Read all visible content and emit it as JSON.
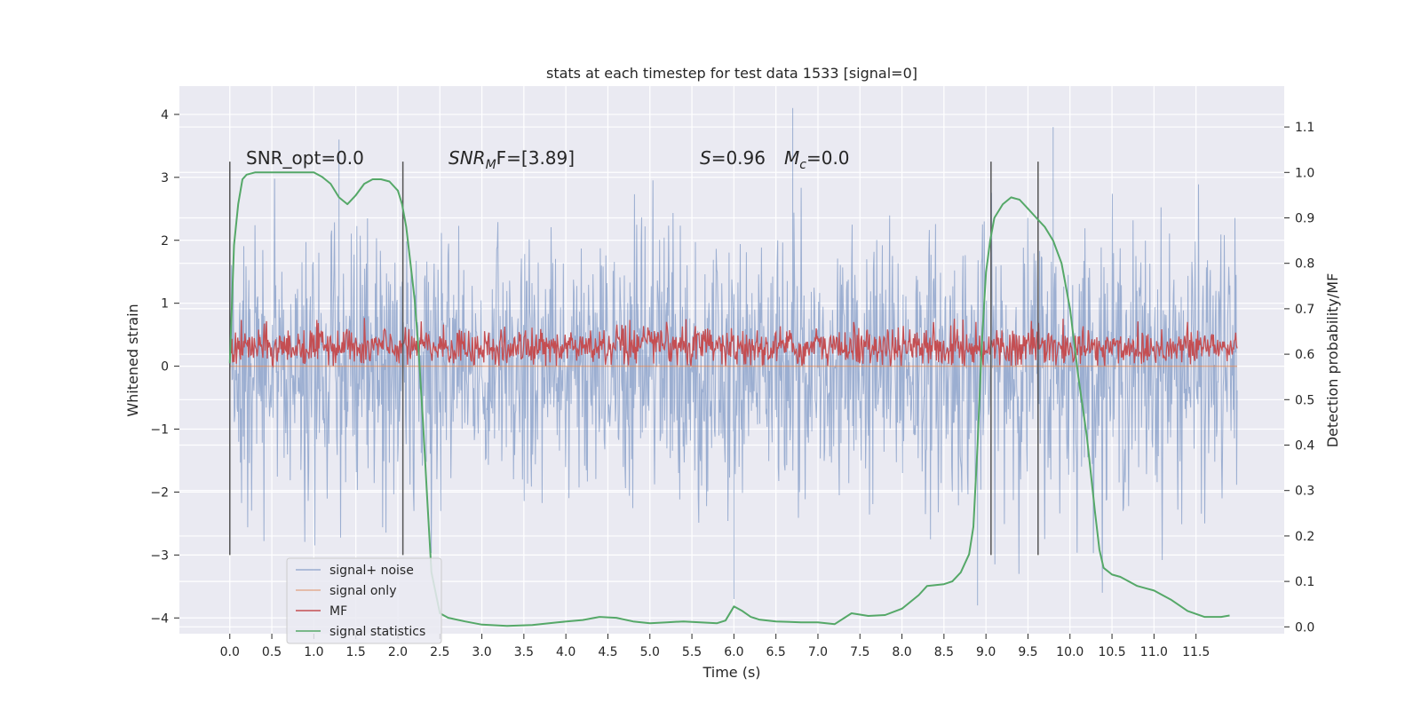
{
  "chart_data": {
    "type": "line",
    "title": "stats at each timestep for test data 1533 [signal=0]",
    "xlabel": "Time (s)",
    "ylabel": "Whitened strain",
    "y2label": "Detection probability/MF",
    "xlim": [
      -0.6,
      12.55
    ],
    "ylim": [
      -4.25,
      4.45
    ],
    "y2lim": [
      -0.015,
      1.19
    ],
    "x_ticks": [
      "0.0",
      "0.5",
      "1.0",
      "1.5",
      "2.0",
      "2.5",
      "3.0",
      "3.5",
      "4.0",
      "4.5",
      "5.0",
      "5.5",
      "6.0",
      "6.5",
      "7.0",
      "7.5",
      "8.0",
      "8.5",
      "9.0",
      "9.5",
      "10.0",
      "10.5",
      "11.0",
      "11.5"
    ],
    "y_ticks": [
      "4",
      "3",
      "2",
      "1",
      "0",
      "−1",
      "−2",
      "−3",
      "−4"
    ],
    "y2_ticks": [
      "1.1",
      "1.0",
      "0.9",
      "0.8",
      "0.7",
      "0.6",
      "0.5",
      "0.4",
      "0.3",
      "0.2",
      "0.1",
      "0.0"
    ],
    "grid": true,
    "legend_placement": "lower-left",
    "annotations": {
      "snr_opt": "SNR_opt=0.0",
      "snr_mf": "SNR",
      "snr_mf_sub": "M",
      "snr_mf_rest": "F=[3.89]",
      "s_label": "S",
      "s_value": "=0.96",
      "mc_label": "M",
      "mc_sub": "c",
      "mc_value": "=0.0"
    },
    "vertical_markers": [
      0.0,
      2.06,
      9.06,
      9.62
    ],
    "series": [
      {
        "name": "signal+ noise",
        "color": "#4c72b0",
        "axis": "left",
        "x_range": [
          0.0,
          11.99
        ],
        "approx_std": 1.0,
        "approx_peaks": [
          [
            1.3,
            3.6
          ],
          [
            6.7,
            4.1
          ],
          [
            9.8,
            3.8
          ],
          [
            6.0,
            -3.7
          ],
          [
            8.9,
            -3.8
          ]
        ]
      },
      {
        "name": "signal only",
        "color": "#dd8452",
        "axis": "left",
        "x": [
          0.0,
          11.99
        ],
        "y": [
          0.0,
          0.0
        ]
      },
      {
        "name": "MF",
        "color": "#c44e52",
        "axis": "left",
        "x_range": [
          0.0,
          11.99
        ],
        "approx_range": [
          0.0,
          1.0
        ]
      },
      {
        "name": "signal statistics",
        "color": "#55a868",
        "axis": "right",
        "x": [
          0.0,
          0.05,
          0.1,
          0.15,
          0.2,
          0.3,
          0.5,
          0.7,
          1.0,
          1.1,
          1.2,
          1.3,
          1.4,
          1.5,
          1.6,
          1.7,
          1.8,
          1.9,
          2.0,
          2.05,
          2.1,
          2.15,
          2.2,
          2.25,
          2.3,
          2.35,
          2.4,
          2.5,
          2.6,
          2.8,
          3.0,
          3.3,
          3.6,
          3.9,
          4.2,
          4.4,
          4.6,
          4.8,
          5.0,
          5.2,
          5.4,
          5.6,
          5.8,
          5.9,
          6.0,
          6.1,
          6.2,
          6.3,
          6.5,
          6.8,
          7.0,
          7.1,
          7.2,
          7.4,
          7.6,
          7.8,
          8.0,
          8.2,
          8.3,
          8.4,
          8.5,
          8.6,
          8.7,
          8.8,
          8.85,
          8.9,
          8.95,
          9.0,
          9.05,
          9.1,
          9.2,
          9.3,
          9.4,
          9.5,
          9.6,
          9.7,
          9.8,
          9.9,
          10.0,
          10.1,
          10.2,
          10.3,
          10.35,
          10.4,
          10.5,
          10.6,
          10.7,
          10.8,
          10.9,
          11.0,
          11.1,
          11.2,
          11.4,
          11.6,
          11.8,
          11.9
        ],
        "y": [
          0.58,
          0.84,
          0.93,
          0.985,
          0.995,
          1.0,
          1.0,
          1.0,
          1.0,
          0.99,
          0.975,
          0.945,
          0.93,
          0.95,
          0.975,
          0.985,
          0.985,
          0.98,
          0.96,
          0.93,
          0.88,
          0.8,
          0.72,
          0.6,
          0.45,
          0.28,
          0.12,
          0.03,
          0.02,
          0.012,
          0.005,
          0.002,
          0.004,
          0.01,
          0.015,
          0.022,
          0.02,
          0.012,
          0.008,
          0.01,
          0.012,
          0.01,
          0.008,
          0.014,
          0.045,
          0.035,
          0.022,
          0.016,
          0.012,
          0.01,
          0.01,
          0.008,
          0.006,
          0.03,
          0.024,
          0.026,
          0.04,
          0.07,
          0.09,
          0.092,
          0.094,
          0.1,
          0.12,
          0.16,
          0.22,
          0.4,
          0.62,
          0.78,
          0.85,
          0.9,
          0.93,
          0.945,
          0.94,
          0.92,
          0.9,
          0.88,
          0.85,
          0.8,
          0.7,
          0.55,
          0.42,
          0.25,
          0.17,
          0.13,
          0.115,
          0.11,
          0.1,
          0.09,
          0.085,
          0.08,
          0.07,
          0.06,
          0.035,
          0.022,
          0.022,
          0.025
        ]
      }
    ]
  }
}
